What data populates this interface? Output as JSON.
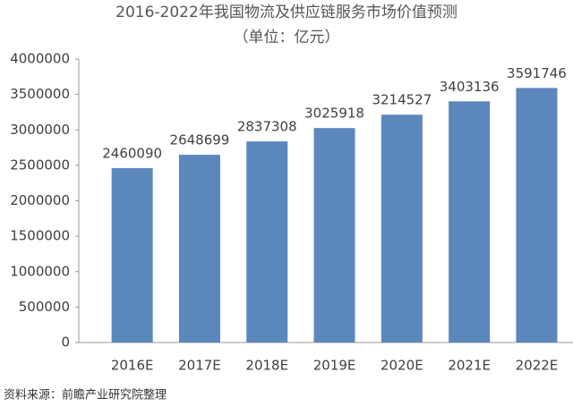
{
  "chart_data": {
    "type": "bar",
    "title": "2016-2022年我国物流及供应链服务市场价值预测",
    "subtitle": "（单位：亿元）",
    "source": "资料来源：前瞻产业研究院整理",
    "categories": [
      "2016E",
      "2017E",
      "2018E",
      "2019E",
      "2020E",
      "2021E",
      "2022E"
    ],
    "values": [
      2460090,
      2648699,
      2837308,
      3025918,
      3214527,
      3403136,
      3591746
    ],
    "color": "#5b87bd",
    "ylim": [
      0,
      4000000
    ],
    "yticks": [
      0,
      500000,
      1000000,
      1500000,
      2000000,
      2500000,
      3000000,
      3500000,
      4000000
    ],
    "grid": false
  }
}
